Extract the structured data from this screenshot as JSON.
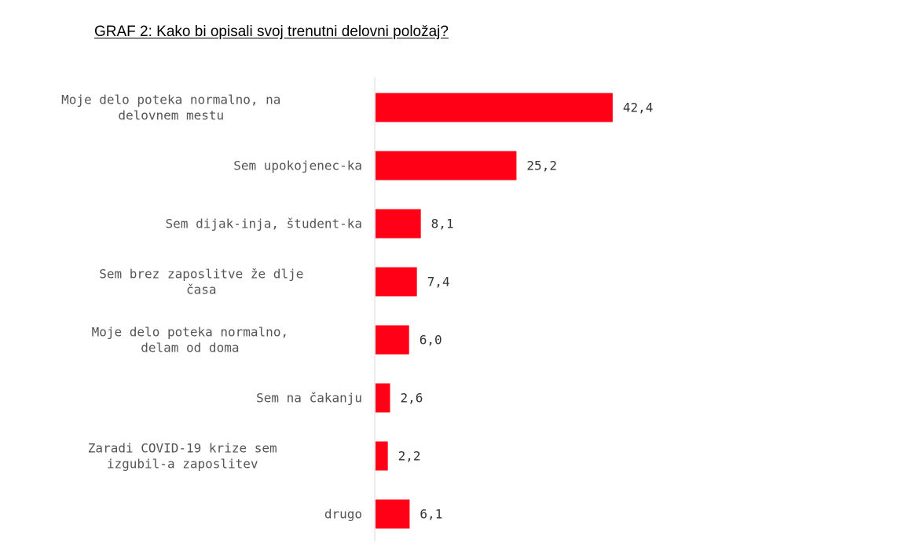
{
  "chart_data": {
    "type": "bar",
    "orientation": "horizontal",
    "title": "GRAF 2: Kako bi opisali svoj trenutni delovni položaj?",
    "categories": [
      [
        "Moje delo poteka normalno, na",
        "delovnem mestu"
      ],
      [
        "Sem upokojenec-ka"
      ],
      [
        "Sem dijak-inja, študent-ka"
      ],
      [
        "Sem brez zaposlitve že dlje",
        "časa"
      ],
      [
        "Moje delo poteka normalno,",
        "delam od doma"
      ],
      [
        "Sem na čakanju"
      ],
      [
        "Zaradi COVID-19 krize sem",
        "izgubil-a zaposlitev"
      ],
      [
        "drugo"
      ]
    ],
    "values": [
      42.4,
      25.2,
      8.1,
      7.4,
      6.0,
      2.6,
      2.2,
      6.1
    ],
    "value_labels": [
      "42,4",
      "25,2",
      "8,1",
      "7,4",
      "6,0",
      "2,6",
      "2,2",
      "6,1"
    ],
    "xlim": [
      0,
      50
    ],
    "grid": false,
    "colors": {
      "bar": "#ff0016",
      "axis": "#d9d9d9"
    }
  }
}
